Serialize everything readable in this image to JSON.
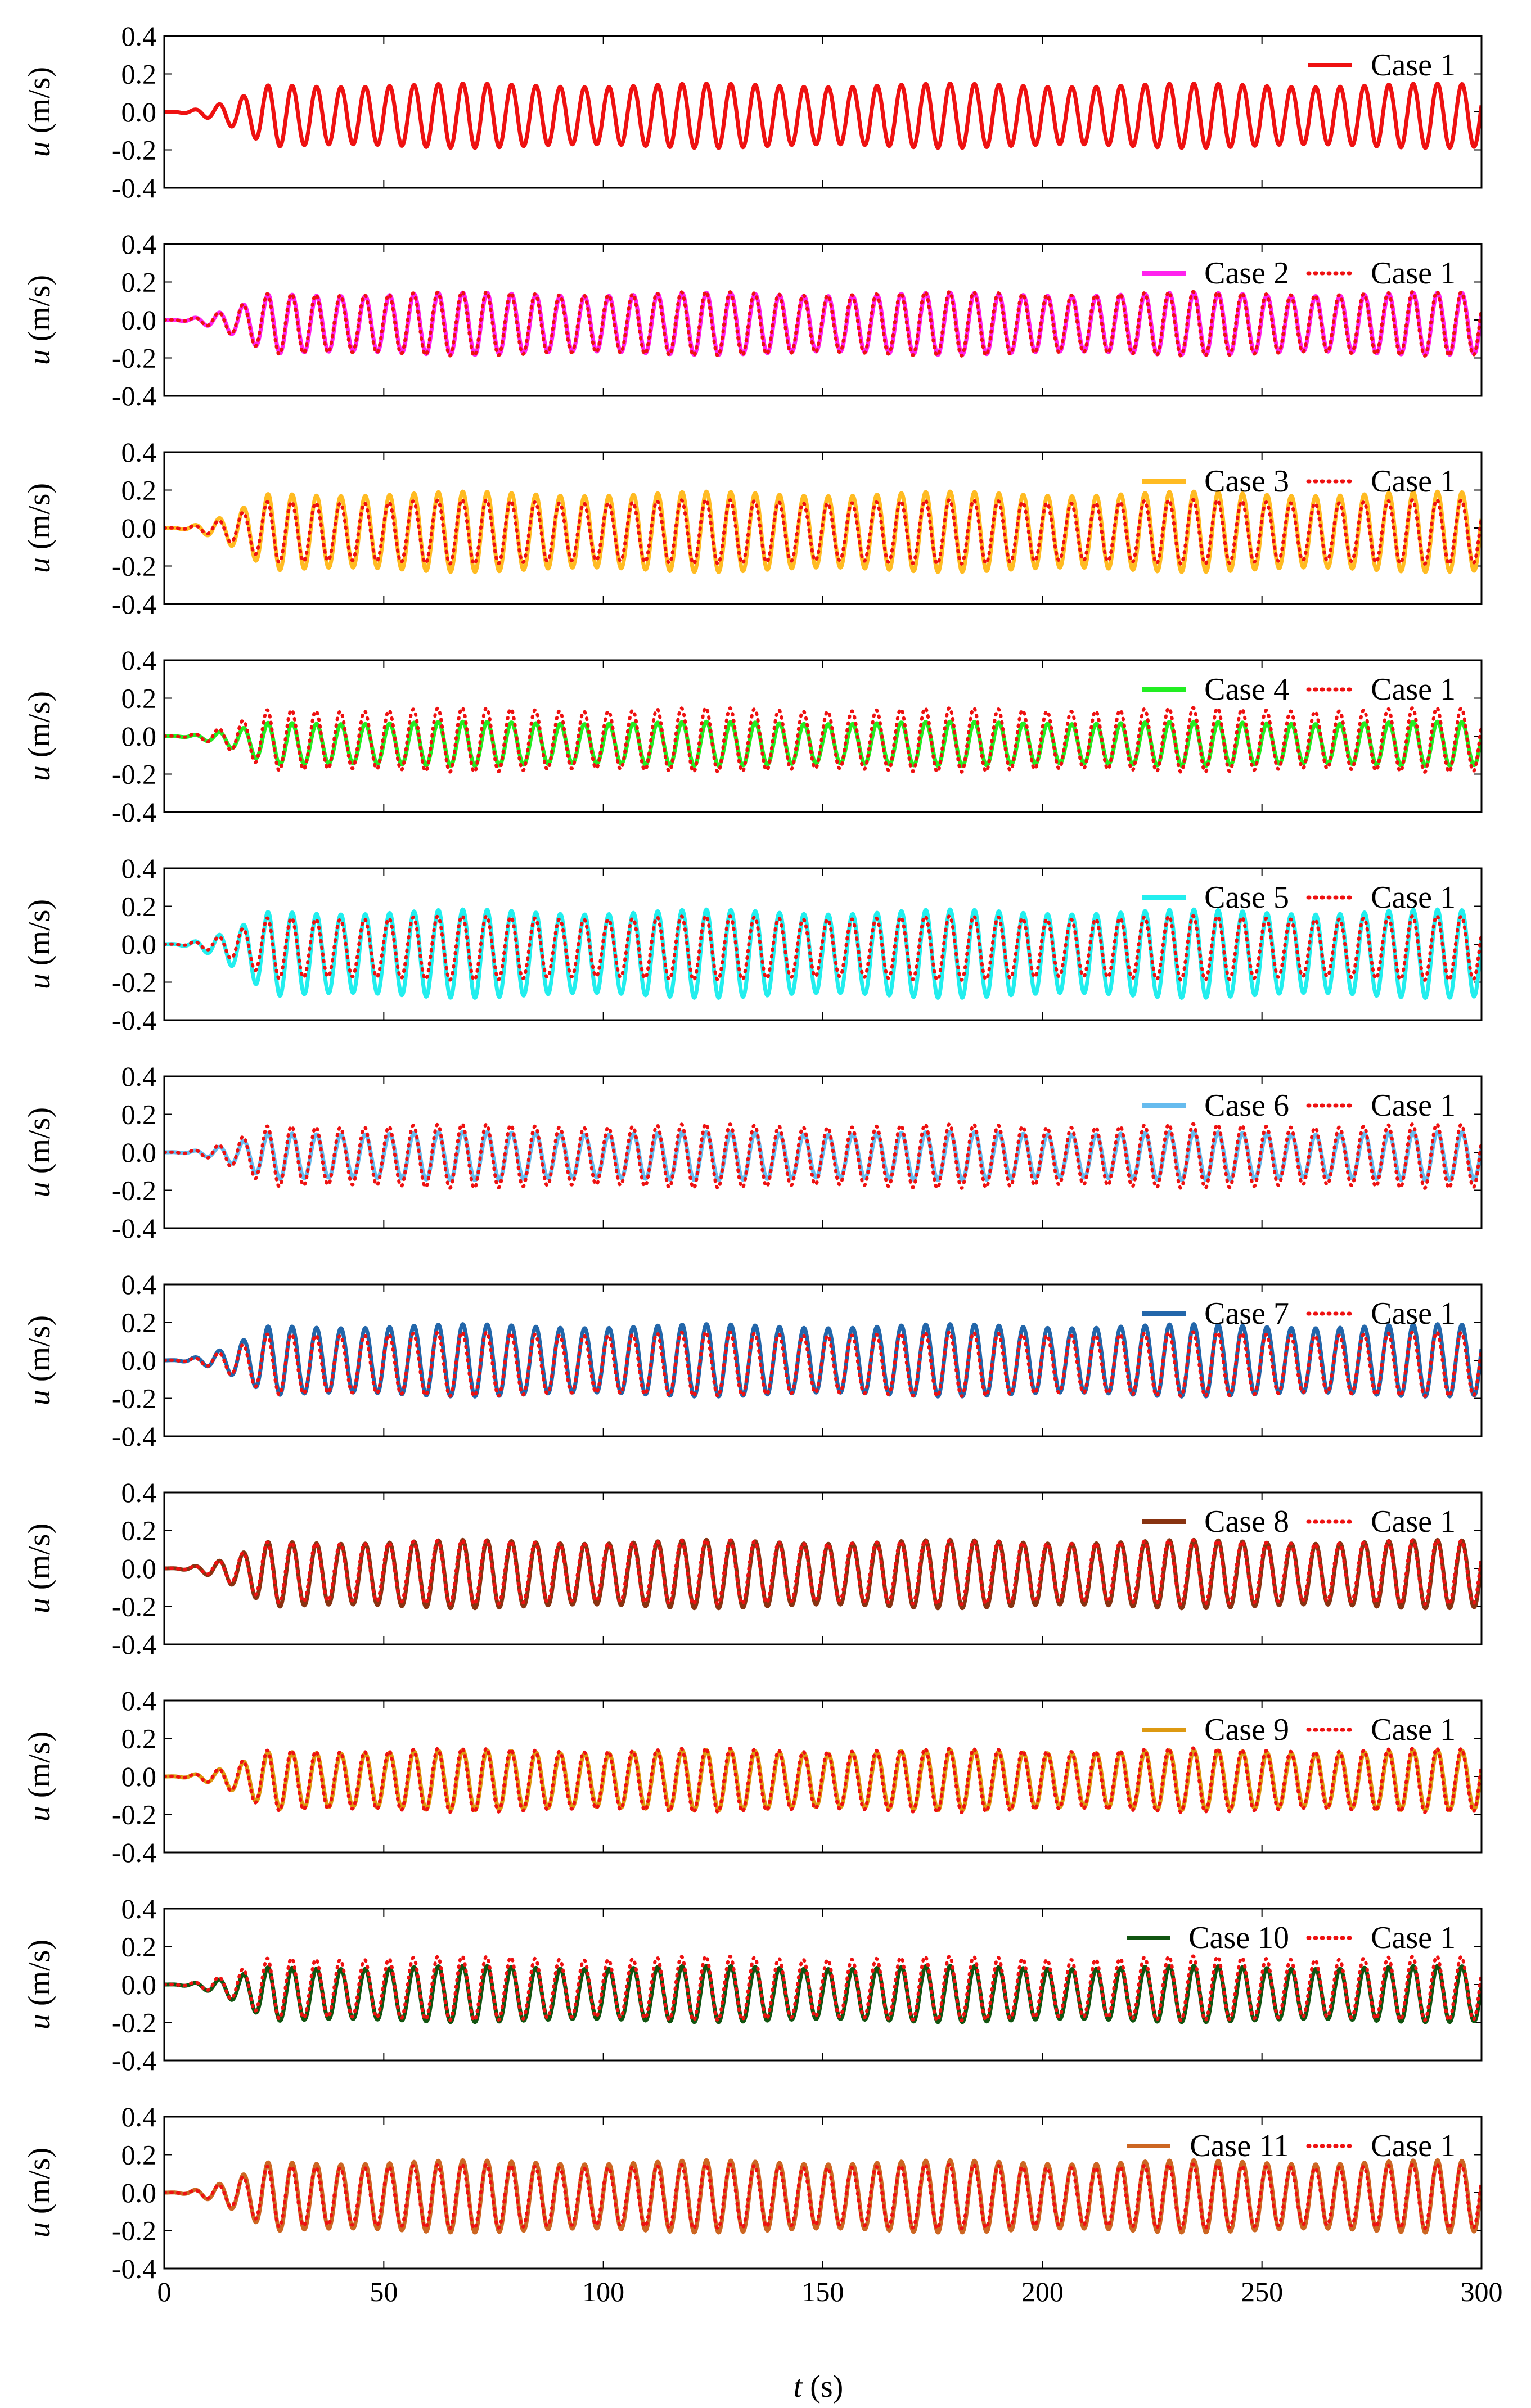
{
  "figure": {
    "ylabel_var": "u",
    "ylabel_unit": " (m/s)",
    "xlabel_var": "t",
    "xlabel_unit": " (s)"
  },
  "chart_data": [
    {
      "type": "line",
      "panel": 1,
      "x_range": [
        0,
        300
      ],
      "ylim": [
        -0.4,
        0.4
      ],
      "yticks": [
        "0.4",
        "0.2",
        "0.0",
        "-0.2",
        "-0.4"
      ],
      "xlabel": "",
      "ylabel": "u (m/s)",
      "series": [
        {
          "name": "Case 1",
          "color": "#ee1111",
          "style": "solid",
          "amp": 0.16,
          "offset": -0.02
        }
      ]
    },
    {
      "type": "line",
      "panel": 2,
      "x_range": [
        0,
        300
      ],
      "ylim": [
        -0.4,
        0.4
      ],
      "yticks": [
        "0.4",
        "0.2",
        "0.0",
        "-0.2",
        "-0.4"
      ],
      "xlabel": "",
      "ylabel": "u (m/s)",
      "series": [
        {
          "name": "Case 2",
          "color": "#ff22ee",
          "style": "solid",
          "amp": 0.155,
          "offset": -0.02
        },
        {
          "name": "Case 1",
          "color": "#ee1111",
          "style": "dotted",
          "amp": 0.16,
          "offset": -0.02
        }
      ]
    },
    {
      "type": "line",
      "panel": 3,
      "x_range": [
        0,
        300
      ],
      "ylim": [
        -0.4,
        0.4
      ],
      "yticks": [
        "0.4",
        "0.2",
        "0.0",
        "-0.2",
        "-0.4"
      ],
      "xlabel": "",
      "ylabel": "u (m/s)",
      "series": [
        {
          "name": "Case 3",
          "color": "#ffbb22",
          "style": "solid",
          "amp": 0.2,
          "offset": -0.02
        },
        {
          "name": "Case 1",
          "color": "#ee1111",
          "style": "dotted",
          "amp": 0.16,
          "offset": -0.02
        }
      ]
    },
    {
      "type": "line",
      "panel": 4,
      "x_range": [
        0,
        300
      ],
      "ylim": [
        -0.4,
        0.4
      ],
      "yticks": [
        "0.4",
        "0.2",
        "0.0",
        "-0.2",
        "-0.4"
      ],
      "xlabel": "",
      "ylabel": "u (m/s)",
      "series": [
        {
          "name": "Case 4",
          "color": "#22ee22",
          "style": "solid",
          "amp": 0.11,
          "offset": -0.04
        },
        {
          "name": "Case 1",
          "color": "#ee1111",
          "style": "dotted",
          "amp": 0.16,
          "offset": -0.02
        }
      ]
    },
    {
      "type": "line",
      "panel": 5,
      "x_range": [
        0,
        300
      ],
      "ylim": [
        -0.4,
        0.4
      ],
      "yticks": [
        "0.4",
        "0.2",
        "0.0",
        "-0.2",
        "-0.4"
      ],
      "xlabel": "",
      "ylabel": "u (m/s)",
      "series": [
        {
          "name": "Case 5",
          "color": "#22eeee",
          "style": "solid",
          "amp": 0.22,
          "offset": -0.05
        },
        {
          "name": "Case 1",
          "color": "#ee1111",
          "style": "dotted",
          "amp": 0.16,
          "offset": -0.02
        }
      ]
    },
    {
      "type": "line",
      "panel": 6,
      "x_range": [
        0,
        300
      ],
      "ylim": [
        -0.4,
        0.4
      ],
      "yticks": [
        "0.4",
        "0.2",
        "0.0",
        "-0.2",
        "-0.4"
      ],
      "xlabel": "",
      "ylabel": "u (m/s)",
      "series": [
        {
          "name": "Case 6",
          "color": "#66bbee",
          "style": "solid",
          "amp": 0.12,
          "offset": -0.02
        },
        {
          "name": "Case 1",
          "color": "#ee1111",
          "style": "dotted",
          "amp": 0.16,
          "offset": -0.02
        }
      ]
    },
    {
      "type": "line",
      "panel": 7,
      "x_range": [
        0,
        300
      ],
      "ylim": [
        -0.4,
        0.4
      ],
      "yticks": [
        "0.4",
        "0.2",
        "0.0",
        "-0.2",
        "-0.4"
      ],
      "xlabel": "",
      "ylabel": "u (m/s)",
      "series": [
        {
          "name": "Case 7",
          "color": "#2266aa",
          "style": "solid",
          "amp": 0.18,
          "offset": 0.0
        },
        {
          "name": "Case 1",
          "color": "#ee1111",
          "style": "dotted",
          "amp": 0.16,
          "offset": -0.02
        }
      ]
    },
    {
      "type": "line",
      "panel": 8,
      "x_range": [
        0,
        300
      ],
      "ylim": [
        -0.4,
        0.4
      ],
      "yticks": [
        "0.4",
        "0.2",
        "0.0",
        "-0.2",
        "-0.4"
      ],
      "xlabel": "",
      "ylabel": "u (m/s)",
      "series": [
        {
          "name": "Case 8",
          "color": "#883311",
          "style": "solid",
          "amp": 0.17,
          "offset": -0.03
        },
        {
          "name": "Case 1",
          "color": "#ee1111",
          "style": "dotted",
          "amp": 0.16,
          "offset": -0.02
        }
      ]
    },
    {
      "type": "line",
      "panel": 9,
      "x_range": [
        0,
        300
      ],
      "ylim": [
        -0.4,
        0.4
      ],
      "yticks": [
        "0.4",
        "0.2",
        "0.0",
        "-0.2",
        "-0.4"
      ],
      "xlabel": "",
      "ylabel": "u (m/s)",
      "series": [
        {
          "name": "Case 9",
          "color": "#dd9911",
          "style": "solid",
          "amp": 0.15,
          "offset": -0.02
        },
        {
          "name": "Case 1",
          "color": "#ee1111",
          "style": "dotted",
          "amp": 0.16,
          "offset": -0.02
        }
      ]
    },
    {
      "type": "line",
      "panel": 10,
      "x_range": [
        0,
        300
      ],
      "ylim": [
        -0.4,
        0.4
      ],
      "yticks": [
        "0.4",
        "0.2",
        "0.0",
        "-0.2",
        "-0.4"
      ],
      "xlabel": "",
      "ylabel": "u (m/s)",
      "series": [
        {
          "name": "Case 10",
          "color": "#115511",
          "style": "solid",
          "amp": 0.14,
          "offset": -0.05
        },
        {
          "name": "Case 1",
          "color": "#ee1111",
          "style": "dotted",
          "amp": 0.16,
          "offset": -0.02
        }
      ]
    },
    {
      "type": "line",
      "panel": 11,
      "x_range": [
        0,
        300
      ],
      "ylim": [
        -0.4,
        0.4
      ],
      "yticks": [
        "0.4",
        "0.2",
        "0.0",
        "-0.2",
        "-0.4"
      ],
      "xlabel": "t (s)",
      "ylabel": "u (m/s)",
      "xticks": [
        "0",
        "50",
        "100",
        "150",
        "200",
        "250",
        "300"
      ],
      "series": [
        {
          "name": "Case 11",
          "color": "#cc6622",
          "style": "solid",
          "amp": 0.18,
          "offset": -0.02
        },
        {
          "name": "Case 1",
          "color": "#ee1111",
          "style": "dotted",
          "amp": 0.16,
          "offset": -0.02
        }
      ]
    }
  ]
}
